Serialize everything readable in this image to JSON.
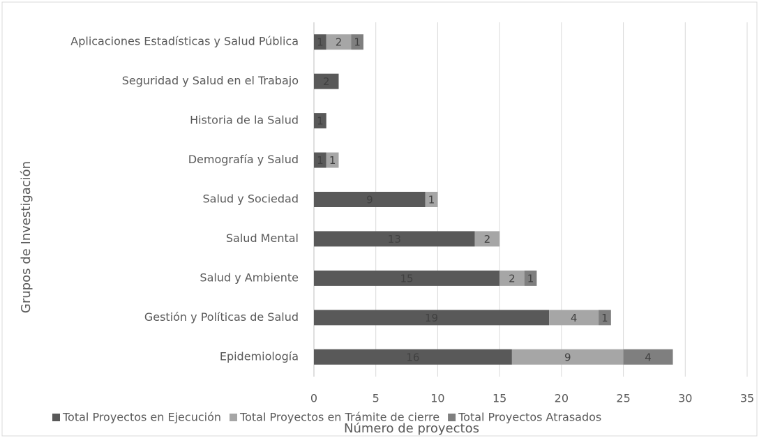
{
  "chart_data": {
    "type": "stacked_barh",
    "xlabel": "Número de proyectos",
    "ylabel": "Grupos de Investigación",
    "categories": [
      "Aplicaciones Estadísticas y Salud Pública",
      "Seguridad y Salud en el Trabajo",
      "Historia de la Salud",
      "Demografía y Salud",
      "Salud y Sociedad",
      "Salud Mental",
      "Salud y Ambiente",
      "Gestión y Políticas de Salud",
      "Epidemiología"
    ],
    "series": [
      {
        "name": "Total Proyectos en Ejecución",
        "color": "#595959",
        "values": [
          1,
          2,
          1,
          1,
          9,
          13,
          15,
          19,
          16
        ]
      },
      {
        "name": "Total Proyectos en Trámite de cierre",
        "color": "#a6a6a6",
        "values": [
          2,
          null,
          null,
          1,
          1,
          2,
          2,
          4,
          9
        ]
      },
      {
        "name": "Total Proyectos Atrasados",
        "color": "#7f7f7f",
        "values": [
          1,
          null,
          null,
          null,
          null,
          null,
          1,
          1,
          4
        ]
      }
    ],
    "xlim": [
      0,
      35
    ],
    "xticks": [
      0,
      5,
      10,
      15,
      20,
      25,
      30,
      35
    ],
    "grid": true,
    "legend": "bottom"
  }
}
